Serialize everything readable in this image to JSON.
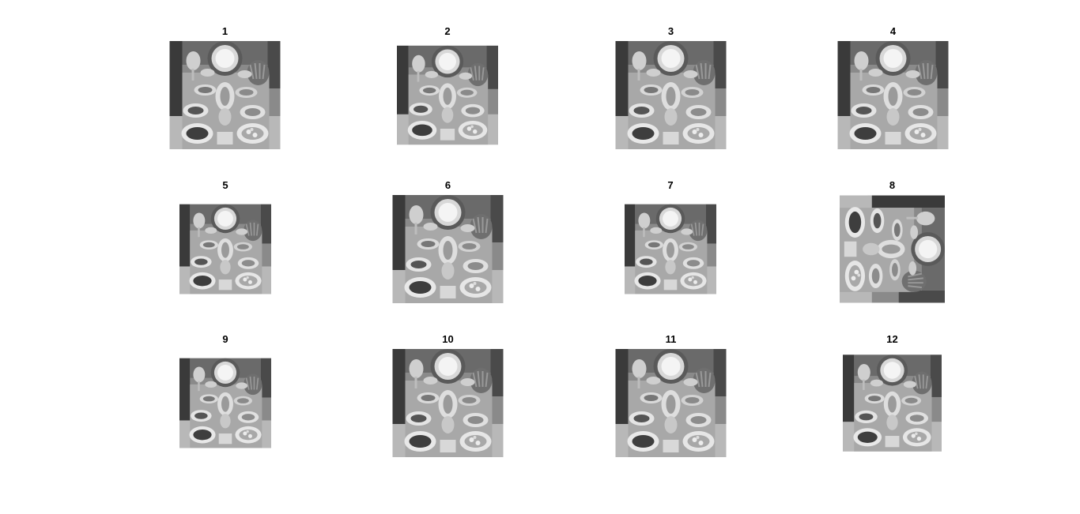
{
  "figure": {
    "background": "#ffffff",
    "title_color": "#000000",
    "panels": [
      {
        "title": "1",
        "orientation": "portrait"
      },
      {
        "title": "2",
        "orientation": "portrait"
      },
      {
        "title": "3",
        "orientation": "portrait"
      },
      {
        "title": "4",
        "orientation": "portrait"
      },
      {
        "title": "5",
        "orientation": "portrait"
      },
      {
        "title": "6",
        "orientation": "portrait"
      },
      {
        "title": "7",
        "orientation": "portrait"
      },
      {
        "title": "8",
        "orientation": "rotated"
      },
      {
        "title": "9",
        "orientation": "portrait"
      },
      {
        "title": "10",
        "orientation": "portrait"
      },
      {
        "title": "11",
        "orientation": "portrait"
      },
      {
        "title": "12",
        "orientation": "portrait"
      }
    ]
  }
}
